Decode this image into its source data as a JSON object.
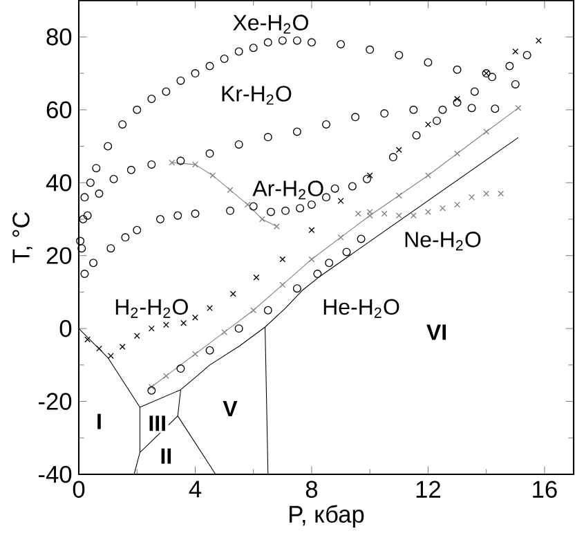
{
  "chart_data": {
    "type": "scatter",
    "xlabel": "P, кбар",
    "ylabel": "T, °C",
    "xlim": [
      0,
      17
    ],
    "ylim": [
      -40,
      90
    ],
    "xticks": [
      0,
      4,
      8,
      12,
      16
    ],
    "yticks": [
      -40,
      -20,
      0,
      20,
      40,
      60,
      80
    ],
    "marker": "circle",
    "series": [
      {
        "name": "Xe-H$_{2}$O",
        "color": "#000000",
        "x": [
          0.1,
          0.15,
          0.2,
          0.4,
          0.6,
          1.0,
          1.5,
          2,
          2.5,
          3,
          3.5,
          4,
          4.5,
          5,
          5.5,
          6,
          6.5,
          7,
          7.5,
          8,
          9,
          10,
          11,
          12,
          13,
          14,
          15
        ],
        "values": [
          22,
          30,
          36,
          40,
          44,
          50,
          56,
          60,
          63,
          65,
          68,
          70,
          72,
          74,
          76,
          77,
          78.5,
          79,
          79,
          78.5,
          78,
          76.5,
          75,
          73,
          71,
          70,
          67
        ]
      },
      {
        "name": "Kr-H$_{2}$O",
        "color": "#000000",
        "x": [
          0.05,
          0.3,
          0.7,
          1.2,
          1.8,
          2.5,
          3.5,
          4.5,
          5.5,
          6.5,
          7.5,
          8.5,
          9.5,
          10.5,
          11.5,
          12.5,
          13.5,
          14.3
        ],
        "values": [
          24,
          31,
          37,
          41,
          43.5,
          45,
          46,
          48,
          50.5,
          52.5,
          54,
          56,
          58,
          59,
          60,
          60,
          60.5,
          60.3
        ]
      },
      {
        "name": "Ar-H$_{2}$O",
        "color": "#000000",
        "x": [
          0.2,
          0.5,
          1.1,
          1.6,
          2,
          2.8,
          3.4,
          4,
          5.2,
          6,
          6.6,
          7.1,
          7.6,
          8.0,
          8.5,
          8.8,
          9.4,
          9.9,
          10.8,
          11.6,
          12.3,
          13,
          13.6,
          14.2,
          14.8,
          15.4
        ],
        "values": [
          15,
          18,
          22,
          25,
          27,
          30,
          31,
          31.5,
          32.3,
          33.5,
          32,
          32.3,
          33,
          34,
          36,
          38.4,
          39,
          41,
          47,
          53,
          57,
          62,
          65,
          69,
          72,
          75
        ]
      },
      {
        "type": "line",
        "marker": "cross",
        "line_style": "solid",
        "color": "#808080",
        "x": [
          3.2,
          4,
          4.6,
          5.2,
          5.8,
          6.3,
          6.8
        ],
        "values": [
          45.5,
          45,
          42,
          38,
          34,
          30,
          28
        ]
      },
      {
        "name": "H$_{2}$-H$_{2}$O",
        "marker": "cross",
        "color": "#000000",
        "x": [
          0.3,
          0.7,
          1.1,
          1.5,
          2,
          2.5,
          3,
          3.6,
          4,
          4.5,
          5.3,
          6.1,
          7,
          8,
          9,
          10,
          11,
          12,
          13,
          14,
          15,
          15.8
        ],
        "values": [
          -3,
          -5.5,
          -7.5,
          -5,
          -2,
          0,
          1,
          1.5,
          3,
          5.6,
          9.5,
          14,
          19,
          27,
          35,
          42,
          49,
          56,
          63,
          70,
          76,
          79
        ]
      },
      {
        "name": "Ne-H$_{2}$O",
        "type": "line",
        "marker": "cross",
        "line_style": "solid",
        "color": "#808080",
        "x": [
          2.5,
          3,
          4,
          5,
          6,
          7,
          8,
          9,
          10,
          11,
          12,
          13,
          14,
          15.1
        ],
        "values": [
          -16,
          -13,
          -7,
          -1,
          5,
          12,
          19,
          25,
          31,
          36.5,
          42,
          48,
          54,
          60.5
        ]
      },
      {
        "marker": "cross",
        "color": "#808080",
        "x": [
          9.6,
          10,
          10.5,
          11,
          11.5,
          12,
          12.5,
          13,
          13.5,
          14,
          14.5
        ],
        "values": [
          31.5,
          32,
          31.5,
          31,
          31,
          32,
          33,
          34,
          36,
          37,
          37
        ]
      },
      {
        "name": "He-H$_{2}$O",
        "color": "#000000",
        "x": [
          2.5,
          3.5,
          4.5,
          5.5,
          6.5,
          7.5,
          8.2,
          8.6,
          9.2,
          9.7
        ],
        "values": [
          -17,
          -11,
          -6,
          0,
          5,
          11,
          15,
          18,
          21,
          24.6
        ]
      },
      {
        "type": "line",
        "marker": "none",
        "line_style": "solid",
        "color": "#000000",
        "x": [
          0,
          1,
          2.1,
          3.5,
          3.8,
          4.5,
          5.5,
          6.4,
          7.1,
          7.7,
          8.3,
          15.1
        ],
        "values": [
          0,
          -8,
          -21.6,
          -16.8,
          -14.8,
          -10,
          -4.9,
          0.4,
          5.6,
          10.6,
          14.4,
          52.4
        ]
      },
      {
        "type": "line",
        "marker": "none",
        "line_style": "solid",
        "color": "#000000",
        "x": [
          1.9,
          2.1,
          2.1
        ],
        "values": [
          -40,
          -34,
          -21.6
        ]
      },
      {
        "type": "line",
        "marker": "none",
        "line_style": "solid",
        "color": "#000000",
        "x": [
          2.1,
          3.4,
          3.5
        ],
        "values": [
          -34,
          -24,
          -16.8
        ]
      },
      {
        "type": "line",
        "marker": "none",
        "line_style": "solid",
        "color": "#000000",
        "x": [
          3.4,
          4.7
        ],
        "values": [
          -24,
          -40
        ]
      },
      {
        "type": "line",
        "marker": "none",
        "line_style": "solid",
        "color": "#000000",
        "x": [
          6.4,
          6.5
        ],
        "values": [
          0.4,
          -40
        ]
      }
    ],
    "annotations": [
      "I",
      "II",
      "III",
      "V",
      "VI"
    ]
  }
}
